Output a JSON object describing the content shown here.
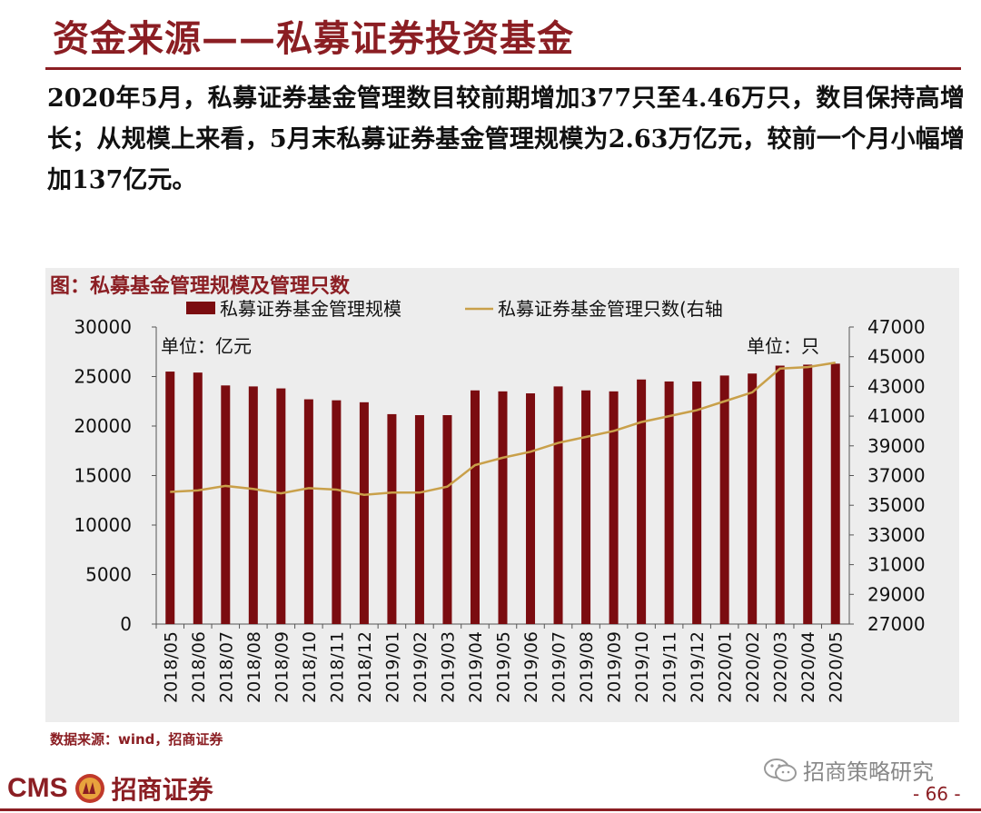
{
  "header": {
    "title": "资金来源——私募证券投资基金"
  },
  "body": {
    "paragraph": "2020年5月，私募证券基金管理数目较前期增加377只至4.46万只，数目保持高增长；从规模上来看，5月末私募证券基金管理规模为2.63万亿元，较前一个月小幅增加137亿元。"
  },
  "chart_data": {
    "type": "bar",
    "title": "图：私募基金管理规模及管理只数",
    "categories": [
      "2018/05",
      "2018/06",
      "2018/07",
      "2018/08",
      "2018/09",
      "2018/10",
      "2018/11",
      "2018/12",
      "2019/01",
      "2019/02",
      "2019/03",
      "2019/04",
      "2019/05",
      "2019/06",
      "2019/07",
      "2019/08",
      "2019/09",
      "2019/10",
      "2019/11",
      "2019/12",
      "2020/01",
      "2020/02",
      "2020/03",
      "2020/04",
      "2020/05"
    ],
    "series": [
      {
        "name": "私募证券基金管理规模",
        "type": "bar",
        "axis": "left",
        "color": "#7B0C10",
        "values": [
          25500,
          25400,
          24100,
          24000,
          23800,
          22700,
          22600,
          22400,
          21200,
          21100,
          21100,
          23600,
          23500,
          23300,
          24000,
          23600,
          23500,
          24700,
          24500,
          24500,
          25100,
          25300,
          26100,
          26200,
          26300
        ]
      },
      {
        "name": "私募证券基金管理只数(右轴",
        "type": "line",
        "axis": "right",
        "color": "#C9A04A",
        "values": [
          35900,
          36000,
          36300,
          36100,
          35800,
          36150,
          36050,
          35700,
          35850,
          35850,
          36250,
          37700,
          38200,
          38600,
          39200,
          39600,
          40000,
          40600,
          41000,
          41400,
          42000,
          42600,
          44200,
          44300,
          44600
        ]
      }
    ],
    "left_axis": {
      "ylim": [
        0,
        30000
      ],
      "ticks": [
        0,
        5000,
        10000,
        15000,
        20000,
        25000,
        30000
      ],
      "unit_label": "单位：亿元"
    },
    "right_axis": {
      "ylim": [
        27000,
        47000
      ],
      "ticks": [
        27000,
        29000,
        31000,
        33000,
        35000,
        37000,
        39000,
        41000,
        43000,
        45000,
        47000
      ],
      "unit_label": "单位：只"
    },
    "legend": "top",
    "grid": false
  },
  "footer": {
    "source": "数据来源：wind，招商证券",
    "wechat": "招商策略研究",
    "logo_en": "CMS",
    "logo_cn": "招商证券",
    "page": "- 66 -"
  },
  "colors": {
    "brand": "#8B1E23",
    "bar": "#7B0C10",
    "line": "#C9A04A",
    "panel": "#EDEDED"
  }
}
